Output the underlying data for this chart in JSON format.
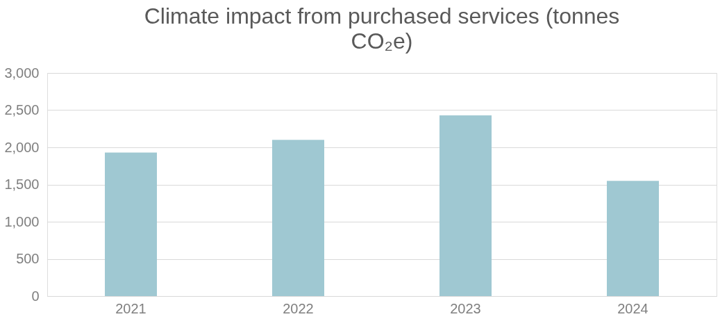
{
  "chart_data": {
    "type": "bar",
    "title": "Climate impact from purchased services (tonnes CO₂e)",
    "categories": [
      "2021",
      "2022",
      "2023",
      "2024"
    ],
    "values": [
      1930,
      2100,
      2430,
      1550
    ],
    "color": "#9fc8d2",
    "ylim": [
      0,
      3000
    ],
    "yticks": [
      0,
      500,
      {
        "value": 1000,
        "label": "1,000"
      },
      {
        "value": 1500,
        "label": "1,500"
      },
      {
        "value": 2000,
        "label": "2,000"
      },
      {
        "value": 2500,
        "label": "2,500"
      },
      {
        "value": 3000,
        "label": "3,000"
      }
    ],
    "grid": "y"
  }
}
